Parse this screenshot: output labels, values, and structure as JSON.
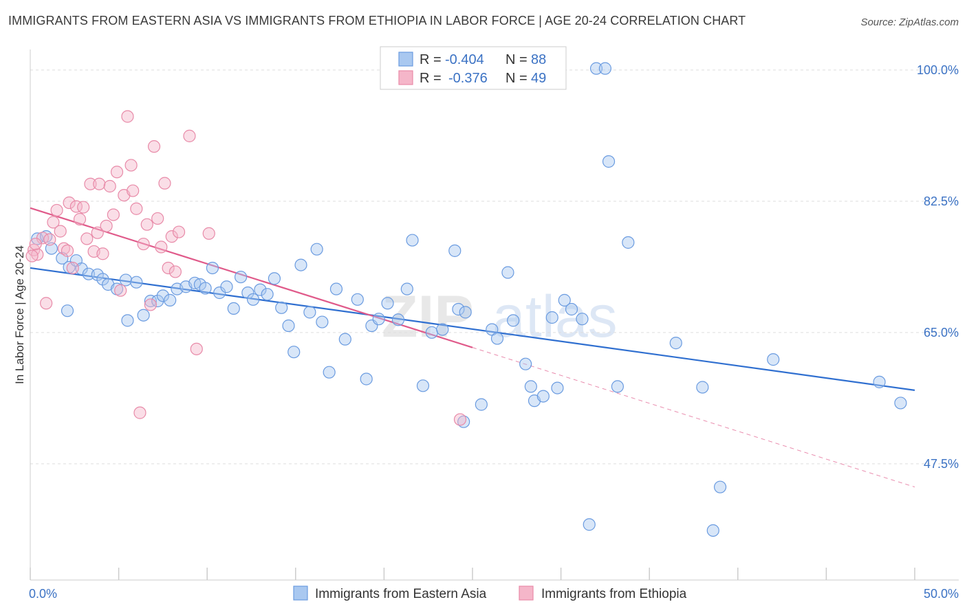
{
  "title": "IMMIGRANTS FROM EASTERN ASIA VS IMMIGRANTS FROM ETHIOPIA IN LABOR FORCE | AGE 20-24 CORRELATION CHART",
  "source": "Source: ZipAtlas.com",
  "watermark": {
    "zip": "ZIP",
    "atlas": "atlas"
  },
  "colors": {
    "blue_fill": "#a9c8f0",
    "blue_stroke": "#6a9be0",
    "blue_line": "#2f6fd0",
    "pink_fill": "#f5b6c9",
    "pink_stroke": "#e88aa8",
    "pink_line": "#e05a8a",
    "tick_text": "#3b72c4",
    "grid": "#dddddd"
  },
  "legend": {
    "rows": [
      {
        "series": "Immigrants from Eastern Asia",
        "r_label": "R =",
        "r_value": "-0.404",
        "n_label": "N =",
        "n_value": "88"
      },
      {
        "series": "Immigrants from Ethiopia",
        "r_label": "R =",
        "r_value": "-0.376",
        "n_label": "N =",
        "n_value": "49"
      }
    ]
  },
  "bottom_legend": [
    "Immigrants from Eastern Asia",
    "Immigrants from Ethiopia"
  ],
  "chart_data": {
    "type": "scatter",
    "xlabel": "",
    "ylabel": "In Labor Force | Age 20-24",
    "xlim": [
      0,
      50
    ],
    "ylim": [
      32,
      102
    ],
    "x_tick_labels": [
      "0.0%",
      "50.0%"
    ],
    "y_ticks": [
      47.5,
      65.0,
      82.5,
      100.0
    ],
    "y_tick_labels": [
      "47.5%",
      "65.0%",
      "82.5%",
      "100.0%"
    ],
    "grid": true,
    "legend_position": "top-center",
    "series": [
      {
        "name": "Immigrants from Eastern Asia",
        "color": "#6a9be0",
        "regression": {
          "x": [
            0,
            50
          ],
          "y": [
            73.6,
            57.3
          ]
        },
        "points": [
          [
            0.4,
            77.5
          ],
          [
            0.9,
            77.8
          ],
          [
            1.2,
            76.2
          ],
          [
            1.8,
            74.9
          ],
          [
            2.2,
            73.7
          ],
          [
            2.6,
            74.6
          ],
          [
            2.9,
            73.5
          ],
          [
            3.3,
            72.8
          ],
          [
            3.8,
            72.7
          ],
          [
            4.1,
            72.1
          ],
          [
            4.4,
            71.4
          ],
          [
            4.9,
            70.8
          ],
          [
            5.4,
            72.0
          ],
          [
            5.5,
            66.6
          ],
          [
            6.0,
            71.7
          ],
          [
            6.4,
            67.3
          ],
          [
            6.8,
            69.2
          ],
          [
            7.2,
            69.2
          ],
          [
            7.5,
            69.9
          ],
          [
            7.9,
            69.3
          ],
          [
            8.3,
            70.8
          ],
          [
            8.8,
            71.1
          ],
          [
            9.3,
            71.6
          ],
          [
            9.6,
            71.4
          ],
          [
            9.9,
            70.9
          ],
          [
            10.3,
            73.6
          ],
          [
            10.7,
            70.3
          ],
          [
            11.1,
            71.1
          ],
          [
            11.5,
            68.2
          ],
          [
            11.9,
            72.4
          ],
          [
            12.3,
            70.3
          ],
          [
            12.6,
            69.4
          ],
          [
            13.0,
            70.7
          ],
          [
            13.4,
            70.1
          ],
          [
            13.8,
            72.2
          ],
          [
            14.2,
            68.3
          ],
          [
            14.6,
            65.9
          ],
          [
            14.9,
            62.4
          ],
          [
            15.3,
            74.0
          ],
          [
            15.8,
            67.7
          ],
          [
            16.2,
            76.1
          ],
          [
            16.5,
            66.4
          ],
          [
            16.9,
            59.7
          ],
          [
            17.3,
            70.8
          ],
          [
            17.8,
            64.1
          ],
          [
            18.5,
            69.4
          ],
          [
            19.0,
            58.8
          ],
          [
            19.3,
            65.9
          ],
          [
            19.7,
            66.8
          ],
          [
            20.2,
            68.9
          ],
          [
            20.8,
            66.7
          ],
          [
            21.3,
            70.8
          ],
          [
            21.6,
            77.3
          ],
          [
            22.2,
            57.9
          ],
          [
            22.7,
            65.0
          ],
          [
            23.3,
            65.4
          ],
          [
            24.0,
            75.9
          ],
          [
            24.2,
            68.1
          ],
          [
            24.6,
            67.7
          ],
          [
            24.5,
            53.1
          ],
          [
            25.5,
            55.4
          ],
          [
            26.1,
            65.4
          ],
          [
            26.4,
            64.2
          ],
          [
            27.0,
            73.0
          ],
          [
            27.3,
            66.6
          ],
          [
            28.0,
            60.8
          ],
          [
            28.3,
            57.8
          ],
          [
            28.5,
            55.9
          ],
          [
            29.0,
            56.5
          ],
          [
            29.5,
            67.0
          ],
          [
            29.8,
            57.6
          ],
          [
            30.2,
            69.3
          ],
          [
            30.6,
            68.1
          ],
          [
            31.2,
            66.8
          ],
          [
            31.6,
            39.4
          ],
          [
            32.0,
            100.2
          ],
          [
            32.5,
            100.2
          ],
          [
            32.7,
            87.8
          ],
          [
            33.2,
            57.8
          ],
          [
            33.8,
            77.0
          ],
          [
            36.5,
            63.6
          ],
          [
            38.0,
            57.7
          ],
          [
            38.6,
            38.6
          ],
          [
            39.0,
            44.4
          ],
          [
            42.0,
            61.4
          ],
          [
            48.0,
            58.4
          ],
          [
            49.2,
            55.6
          ],
          [
            2.1,
            67.9
          ]
        ]
      },
      {
        "name": "Immigrants from Ethiopia",
        "color": "#e88aa8",
        "regression": {
          "x": [
            0,
            25
          ],
          "y": [
            81.6,
            63.0
          ]
        },
        "regression_dashed": {
          "x": [
            25,
            50
          ],
          "y": [
            63.0,
            44.4
          ]
        },
        "points": [
          [
            0.2,
            76.0
          ],
          [
            0.4,
            75.4
          ],
          [
            0.7,
            77.6
          ],
          [
            1.1,
            77.4
          ],
          [
            1.3,
            79.7
          ],
          [
            1.5,
            81.3
          ],
          [
            1.7,
            78.5
          ],
          [
            1.9,
            76.2
          ],
          [
            2.1,
            75.9
          ],
          [
            2.2,
            82.3
          ],
          [
            2.4,
            73.6
          ],
          [
            2.6,
            81.8
          ],
          [
            2.8,
            80.1
          ],
          [
            3.0,
            81.7
          ],
          [
            3.2,
            77.5
          ],
          [
            3.4,
            84.8
          ],
          [
            3.6,
            75.8
          ],
          [
            3.8,
            78.3
          ],
          [
            3.9,
            84.8
          ],
          [
            4.1,
            75.5
          ],
          [
            4.3,
            79.2
          ],
          [
            4.5,
            84.5
          ],
          [
            4.7,
            80.7
          ],
          [
            4.9,
            86.4
          ],
          [
            5.1,
            70.6
          ],
          [
            5.3,
            83.3
          ],
          [
            5.5,
            93.8
          ],
          [
            5.7,
            87.3
          ],
          [
            5.8,
            83.9
          ],
          [
            6.0,
            81.5
          ],
          [
            6.2,
            54.3
          ],
          [
            6.4,
            76.8
          ],
          [
            6.6,
            79.4
          ],
          [
            6.8,
            68.7
          ],
          [
            7.0,
            89.8
          ],
          [
            7.2,
            80.2
          ],
          [
            7.4,
            76.4
          ],
          [
            7.6,
            84.9
          ],
          [
            7.8,
            73.6
          ],
          [
            8.0,
            77.8
          ],
          [
            8.2,
            73.1
          ],
          [
            8.4,
            78.4
          ],
          [
            9.0,
            91.2
          ],
          [
            9.4,
            62.8
          ],
          [
            10.1,
            78.2
          ],
          [
            0.9,
            68.9
          ],
          [
            24.3,
            53.4
          ],
          [
            0.1,
            75.2
          ],
          [
            0.3,
            76.8
          ]
        ]
      }
    ]
  }
}
